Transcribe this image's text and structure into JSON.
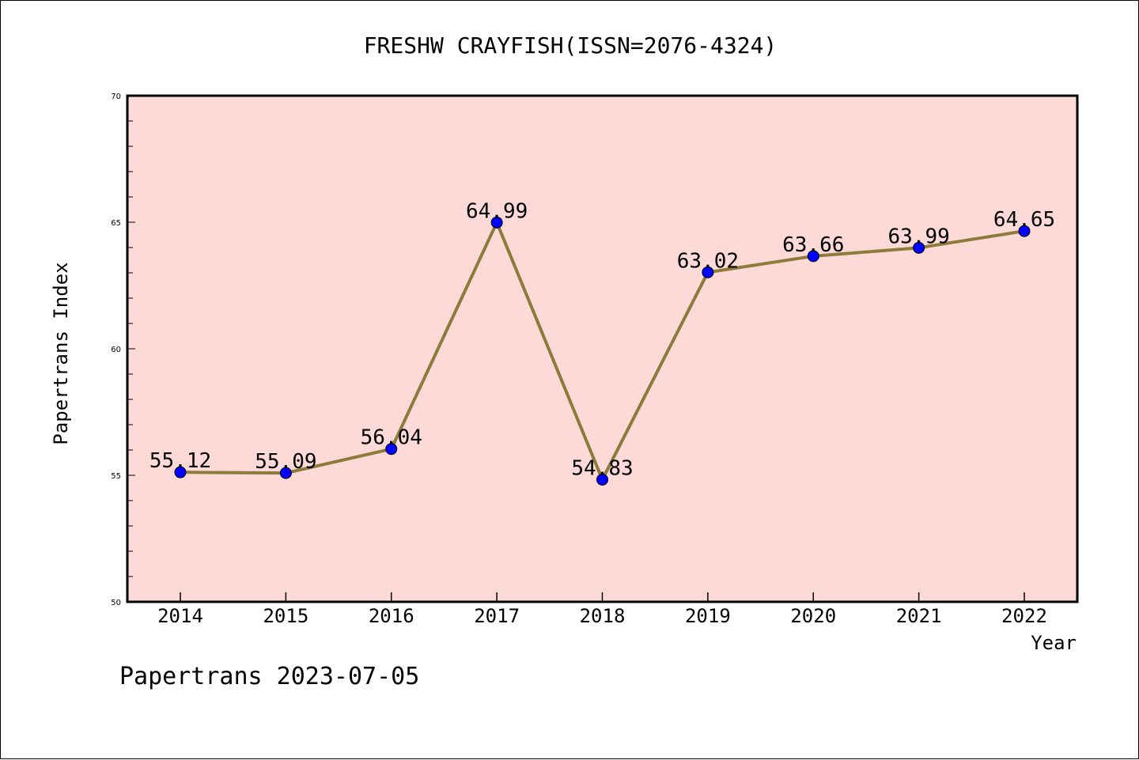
{
  "chart_data": {
    "type": "line",
    "title": "FRESHW CRAYFISH(ISSN=2076-4324)",
    "xlabel": "Year",
    "ylabel": "Papertrans Index",
    "categories": [
      "2014",
      "2015",
      "2016",
      "2017",
      "2018",
      "2019",
      "2020",
      "2021",
      "2022"
    ],
    "series": [
      {
        "values": [
          55.12,
          55.09,
          56.04,
          64.99,
          54.83,
          63.02,
          63.66,
          63.99,
          64.65
        ]
      }
    ],
    "data_labels": [
      "55.12",
      "55.09",
      "56.04",
      "64.99",
      "54.83",
      "63.02",
      "63.66",
      "63.99",
      "64.65"
    ],
    "ylim": [
      50,
      70
    ],
    "yticks": [
      "50",
      "55",
      "60",
      "65",
      "70"
    ],
    "grid": false,
    "line_color": "#8c7b3a",
    "marker_color": "#0000ff",
    "plot_background": "#fddad8"
  },
  "footer": "Papertrans 2023-07-05"
}
